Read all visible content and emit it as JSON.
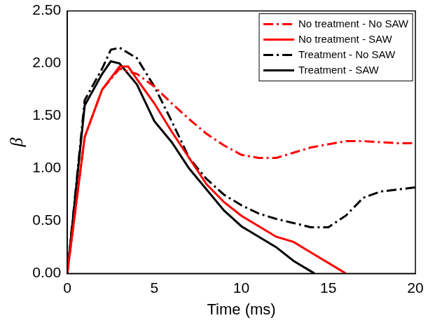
{
  "chart_data": {
    "type": "line",
    "x_label": "Time (ms)",
    "y_label": "β",
    "xlim": [
      0,
      20
    ],
    "xticks": [
      0,
      5,
      10,
      15,
      20
    ],
    "ylim": [
      0,
      2.5
    ],
    "yticks": [
      {
        "value": 0,
        "label": "0.00"
      },
      {
        "value": 0.5,
        "label": "0.50"
      },
      {
        "value": 1,
        "label": "1.00"
      },
      {
        "value": 1.5,
        "label": "1.50"
      },
      {
        "value": 2,
        "label": "2.00"
      },
      {
        "value": 2.5,
        "label": "2.50"
      }
    ],
    "grid": false,
    "legend": "upper right",
    "series": [
      {
        "name": "No treatment - No SAW",
        "color": "#ff0000",
        "line_style": "dashdot",
        "x": [
          0,
          1,
          2,
          3,
          4,
          5,
          6,
          7,
          8,
          9,
          10,
          11,
          12,
          13,
          14,
          15,
          16,
          17,
          18,
          19,
          20
        ],
        "values": [
          0,
          1.3,
          1.75,
          1.95,
          1.9,
          1.78,
          1.62,
          1.47,
          1.33,
          1.22,
          1.13,
          1.1,
          1.1,
          1.15,
          1.2,
          1.23,
          1.26,
          1.26,
          1.25,
          1.24,
          1.24
        ]
      },
      {
        "name": "No treatment - SAW",
        "color": "#ff0000",
        "line_style": "solid",
        "x": [
          0,
          1,
          2,
          3,
          3.5,
          4,
          5,
          6,
          7,
          8,
          9,
          10,
          11,
          12,
          13,
          14,
          15,
          16
        ],
        "values": [
          0,
          1.3,
          1.75,
          1.97,
          1.97,
          1.85,
          1.62,
          1.35,
          1.1,
          0.85,
          0.68,
          0.55,
          0.45,
          0.35,
          0.3,
          0.2,
          0.1,
          0
        ]
      },
      {
        "name": "Treatment - No SAW",
        "color": "#000000",
        "line_style": "dashdot",
        "x": [
          0,
          1,
          2,
          2.5,
          3,
          4,
          5,
          6,
          7,
          8,
          9,
          10,
          11,
          12,
          13,
          14,
          15,
          16,
          17,
          18,
          19,
          20
        ],
        "values": [
          0,
          1.65,
          1.95,
          2.13,
          2.15,
          2.05,
          1.78,
          1.45,
          1.1,
          0.9,
          0.75,
          0.65,
          0.57,
          0.52,
          0.48,
          0.44,
          0.44,
          0.55,
          0.72,
          0.78,
          0.8,
          0.82
        ]
      },
      {
        "name": "Treatment - SAW",
        "color": "#000000",
        "line_style": "solid",
        "x": [
          0,
          1,
          2,
          2.5,
          3,
          4,
          5,
          6,
          7,
          8,
          9,
          10,
          11,
          12,
          13,
          14,
          14.2
        ],
        "values": [
          0,
          1.6,
          1.9,
          2.02,
          2.0,
          1.8,
          1.45,
          1.25,
          1.0,
          0.8,
          0.6,
          0.45,
          0.35,
          0.25,
          0.12,
          0.02,
          0
        ]
      }
    ]
  }
}
